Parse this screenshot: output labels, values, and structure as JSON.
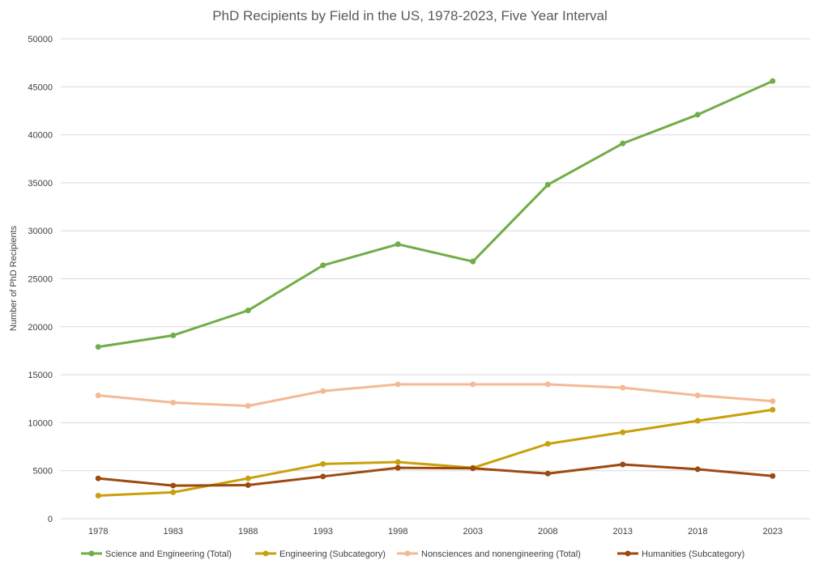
{
  "chart_data": {
    "type": "line",
    "title": "PhD Recipients by Field in the US, 1978-2023, Five Year Interval",
    "xlabel": "",
    "ylabel": "Number of PhD Recipients",
    "categories": [
      "1978",
      "1983",
      "1988",
      "1993",
      "1998",
      "2003",
      "2008",
      "2013",
      "2018",
      "2023"
    ],
    "ylim": [
      0,
      50000
    ],
    "yticks": [
      "0",
      "5000",
      "10000",
      "15000",
      "20000",
      "25000",
      "30000",
      "35000",
      "40000",
      "45000",
      "50000"
    ],
    "grid": true,
    "legend_position": "bottom",
    "series": [
      {
        "name": "Science and Engineering (Total)",
        "color": "#70ad47",
        "values": [
          17900,
          19100,
          21700,
          26400,
          28600,
          26800,
          34800,
          39100,
          42100,
          45600
        ]
      },
      {
        "name": "Engineering (Subcategory)",
        "color": "#c9a00a",
        "values": [
          2400,
          2750,
          4200,
          5700,
          5900,
          5300,
          7800,
          9000,
          10200,
          11350
        ]
      },
      {
        "name": "Nonsciences and nonengineering (Total)",
        "color": "#f4b995",
        "values": [
          12850,
          12100,
          11750,
          13300,
          14000,
          14000,
          14000,
          13650,
          12850,
          12250
        ]
      },
      {
        "name": "Humanities (Subcategory)",
        "color": "#9c4a10",
        "values": [
          4200,
          3450,
          3500,
          4400,
          5300,
          5250,
          4700,
          5650,
          5150,
          4450
        ]
      }
    ]
  }
}
